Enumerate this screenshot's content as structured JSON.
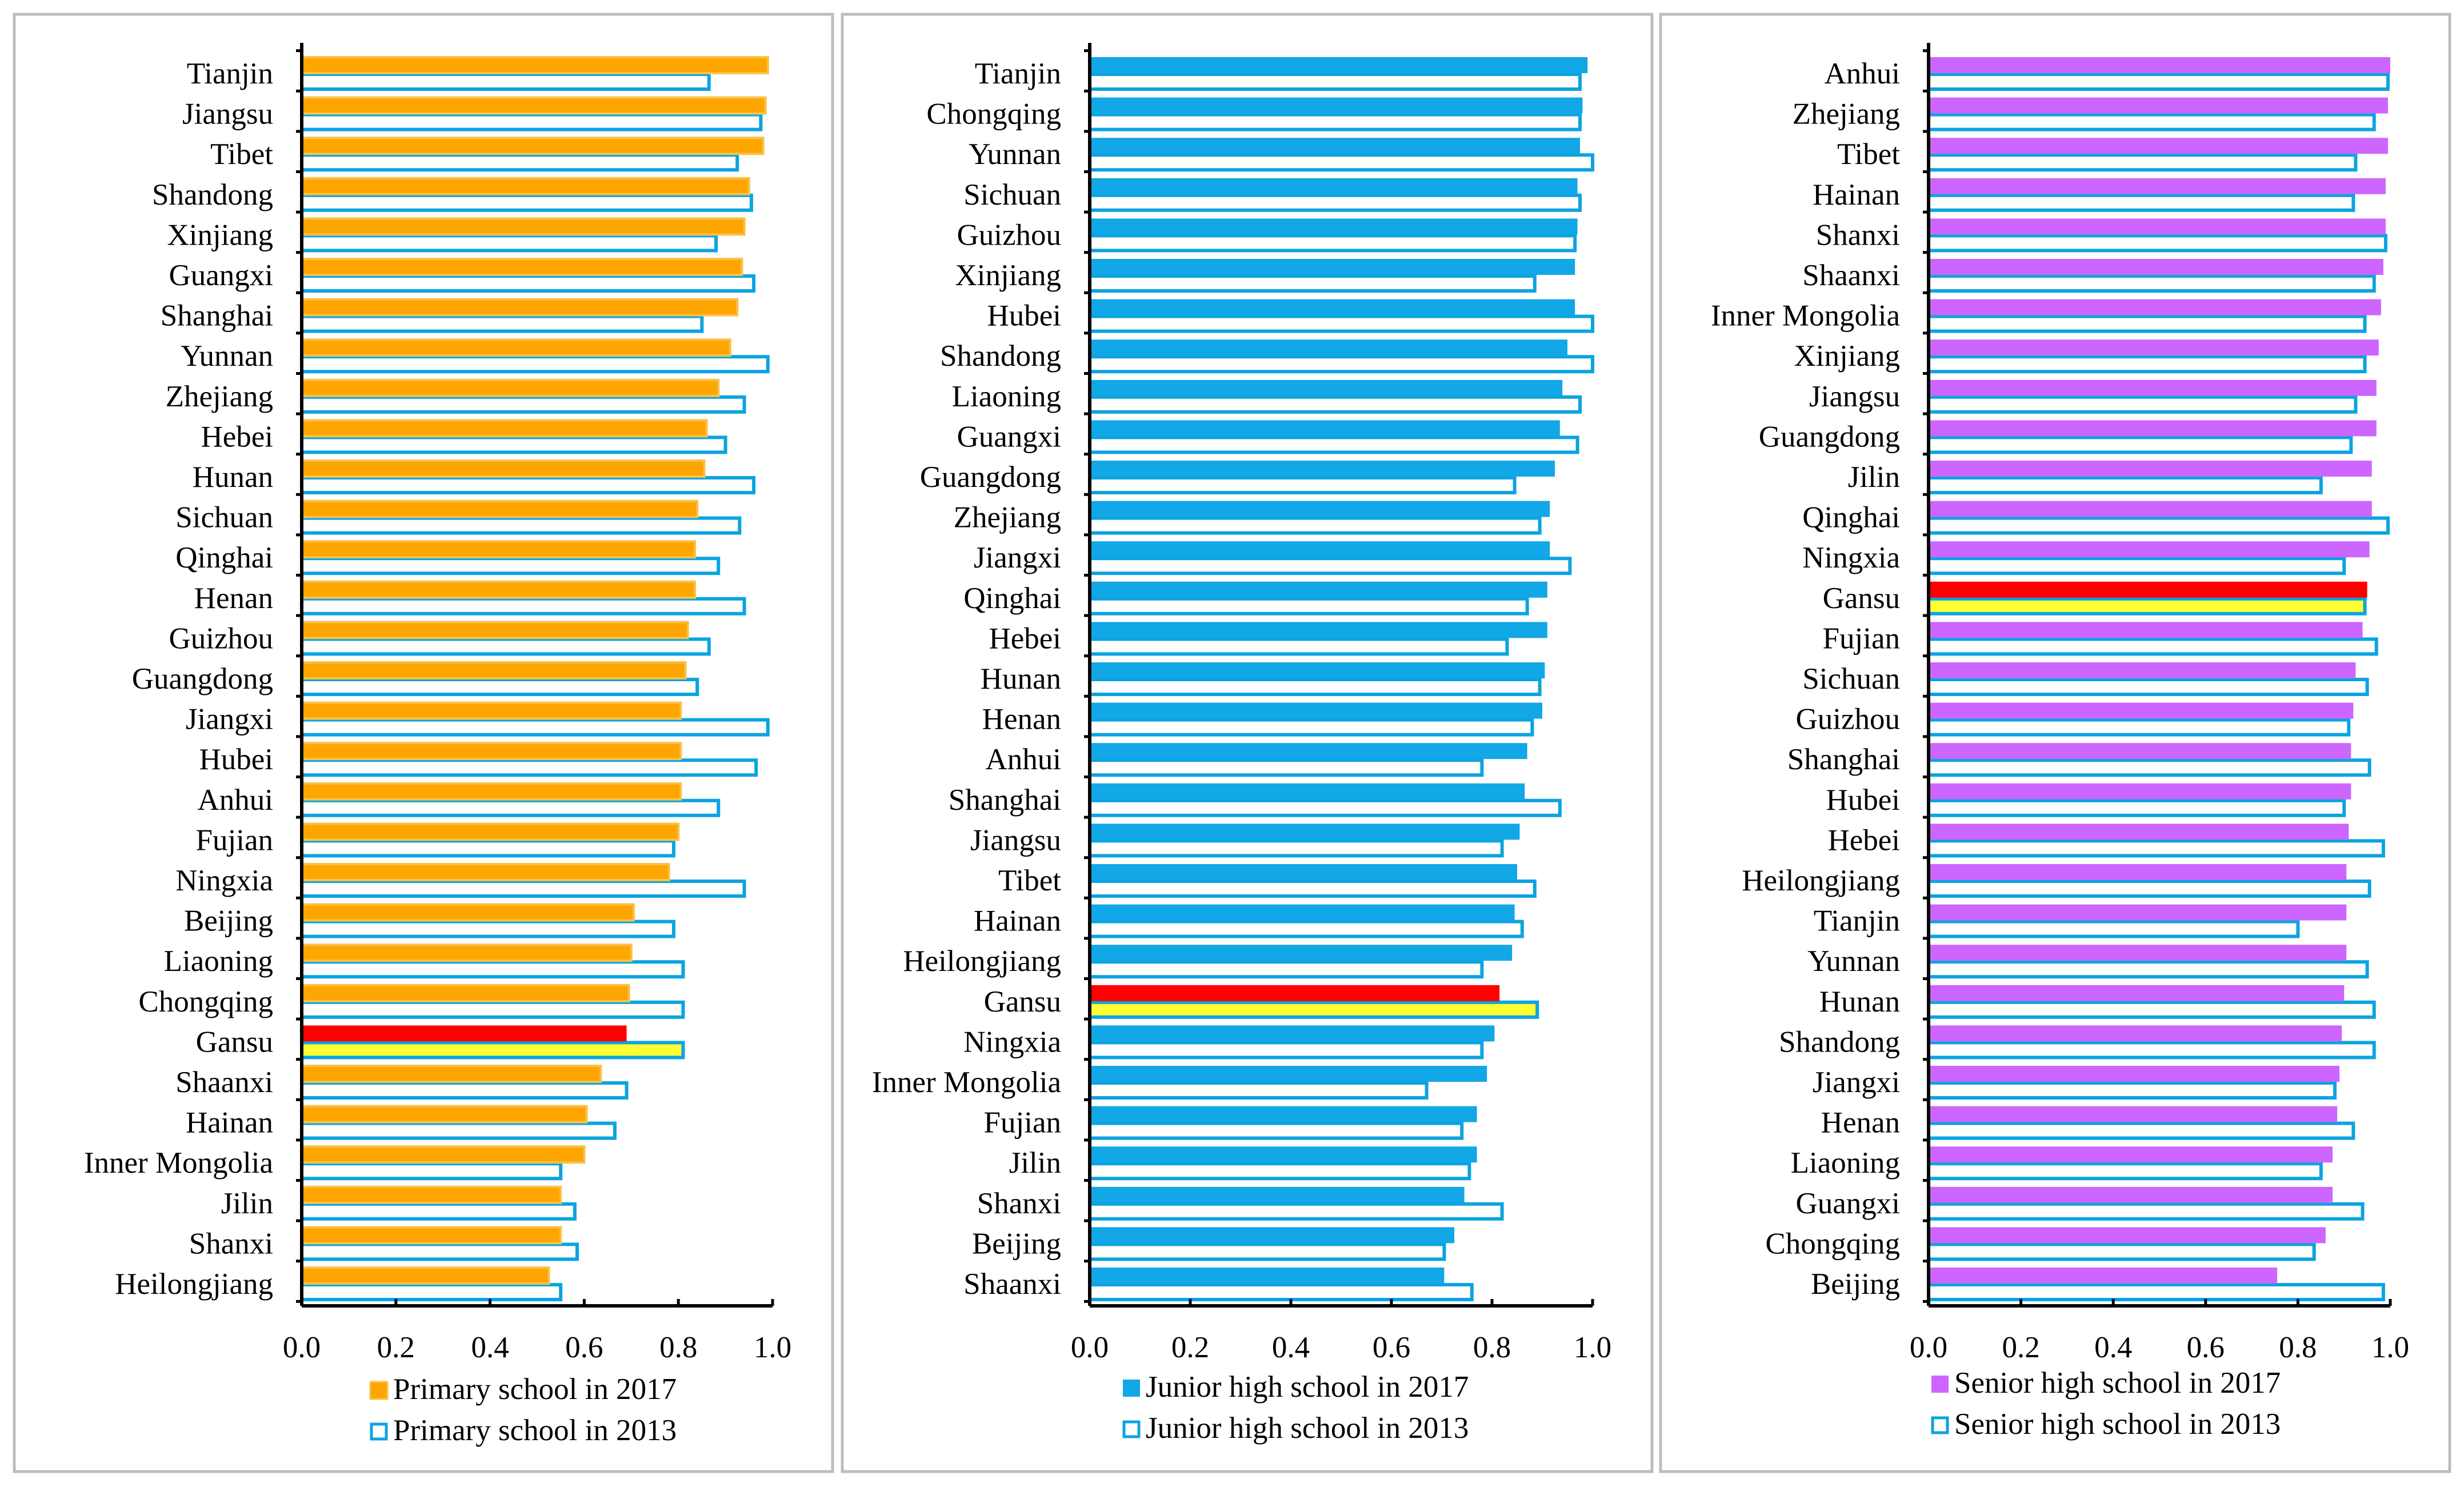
{
  "x_axis": {
    "ticks": [
      "0.0",
      "0.2",
      "0.4",
      "0.6",
      "0.8",
      "1.0"
    ],
    "xlim": [
      0,
      1
    ]
  },
  "chart_data": [
    {
      "type": "bar",
      "orientation": "horizontal",
      "panel": "primary",
      "categories": [
        "Tianjin",
        "Jiangsu",
        "Tibet",
        "Shandong",
        "Xinjiang",
        "Guangxi",
        "Shanghai",
        "Yunnan",
        "Zhejiang",
        "Hebei",
        "Hunan",
        "Sichuan",
        "Qinghai",
        "Henan",
        "Guizhou",
        "Guangdong",
        "Jiangxi",
        "Hubei",
        "Anhui",
        "Fujian",
        "Ningxia",
        "Beijing",
        "Liaoning",
        "Chongqing",
        "Gansu",
        "Shaanxi",
        "Hainan",
        "Inner Mongolia",
        "Jilin",
        "Shanxi",
        "Heilongjiang"
      ],
      "highlight_category": "Gansu",
      "series": [
        {
          "name": "Primary school in 2017",
          "style": "filled",
          "values": [
            0.99,
            0.985,
            0.98,
            0.95,
            0.94,
            0.935,
            0.925,
            0.91,
            0.885,
            0.86,
            0.855,
            0.84,
            0.835,
            0.835,
            0.82,
            0.815,
            0.805,
            0.805,
            0.805,
            0.8,
            0.78,
            0.705,
            0.7,
            0.695,
            0.69,
            0.635,
            0.605,
            0.6,
            0.55,
            0.55,
            0.525
          ]
        },
        {
          "name": "Primary school in 2013",
          "style": "outline",
          "values": [
            0.865,
            0.975,
            0.925,
            0.955,
            0.88,
            0.96,
            0.85,
            0.99,
            0.94,
            0.9,
            0.96,
            0.93,
            0.885,
            0.94,
            0.865,
            0.84,
            0.99,
            0.965,
            0.885,
            0.79,
            0.94,
            0.79,
            0.81,
            0.81,
            0.81,
            0.69,
            0.665,
            0.55,
            0.58,
            0.585,
            0.55
          ]
        }
      ],
      "colors": {
        "fill": "#FFA500",
        "fill_stroke": "#F7C24A",
        "outline": "#0BA4E0",
        "highlight_fill": "#FF0000",
        "highlight_outline_fill": "#FFFF33"
      }
    },
    {
      "type": "bar",
      "orientation": "horizontal",
      "panel": "junior",
      "categories": [
        "Tianjin",
        "Chongqing",
        "Yunnan",
        "Sichuan",
        "Guizhou",
        "Xinjiang",
        "Hubei",
        "Shandong",
        "Liaoning",
        "Guangxi",
        "Guangdong",
        "Zhejiang",
        "Jiangxi",
        "Qinghai",
        "Hebei",
        "Hunan",
        "Henan",
        "Anhui",
        "Shanghai",
        "Jiangsu",
        "Tibet",
        "Hainan",
        "Heilongjiang",
        "Gansu",
        "Ningxia",
        "Inner Mongolia",
        "Fujian",
        "Jilin",
        "Shanxi",
        "Beijing",
        "Shaanxi"
      ],
      "highlight_category": "Gansu",
      "series": [
        {
          "name": "Junior high school in 2017",
          "style": "filled",
          "values": [
            0.99,
            0.98,
            0.975,
            0.97,
            0.97,
            0.965,
            0.965,
            0.95,
            0.94,
            0.935,
            0.925,
            0.915,
            0.915,
            0.91,
            0.91,
            0.905,
            0.9,
            0.87,
            0.865,
            0.855,
            0.85,
            0.845,
            0.84,
            0.815,
            0.805,
            0.79,
            0.77,
            0.77,
            0.745,
            0.725,
            0.705
          ]
        },
        {
          "name": "Junior high school in 2013",
          "style": "outline",
          "values": [
            0.975,
            0.975,
            1.0,
            0.975,
            0.965,
            0.885,
            1.0,
            1.0,
            0.975,
            0.97,
            0.845,
            0.895,
            0.955,
            0.87,
            0.83,
            0.895,
            0.88,
            0.78,
            0.935,
            0.82,
            0.885,
            0.86,
            0.78,
            0.89,
            0.78,
            0.67,
            0.74,
            0.755,
            0.82,
            0.705,
            0.76
          ]
        }
      ],
      "colors": {
        "fill": "#12A7E6",
        "outline": "#0BA4E0",
        "highlight_fill": "#FF0000",
        "highlight_outline_fill": "#FFFF33"
      }
    },
    {
      "type": "bar",
      "orientation": "horizontal",
      "panel": "senior",
      "categories": [
        "Anhui",
        "Zhejiang",
        "Tibet",
        "Hainan",
        "Shanxi",
        "Shaanxi",
        "Inner Mongolia",
        "Xinjiang",
        "Jiangsu",
        "Guangdong",
        "Jilin",
        "Qinghai",
        "Ningxia",
        "Gansu",
        "Fujian",
        "Sichuan",
        "Guizhou",
        "Shanghai",
        "Hubei",
        "Hebei",
        "Heilongjiang",
        "Tianjin",
        "Yunnan",
        "Hunan",
        "Shandong",
        "Jiangxi",
        "Henan",
        "Liaoning",
        "Guangxi",
        "Chongqing",
        "Beijing"
      ],
      "highlight_category": "Gansu",
      "series": [
        {
          "name": "Senior high school in 2017",
          "style": "filled",
          "values": [
            1.0,
            0.995,
            0.995,
            0.99,
            0.99,
            0.985,
            0.98,
            0.975,
            0.97,
            0.97,
            0.96,
            0.96,
            0.955,
            0.95,
            0.94,
            0.925,
            0.92,
            0.915,
            0.915,
            0.91,
            0.905,
            0.905,
            0.905,
            0.9,
            0.895,
            0.89,
            0.885,
            0.875,
            0.875,
            0.86,
            0.755
          ]
        },
        {
          "name": "Senior high school in 2013",
          "style": "outline",
          "values": [
            0.995,
            0.965,
            0.925,
            0.92,
            0.99,
            0.965,
            0.945,
            0.945,
            0.925,
            0.915,
            0.85,
            0.995,
            0.9,
            0.945,
            0.97,
            0.95,
            0.91,
            0.955,
            0.9,
            0.985,
            0.955,
            0.8,
            0.95,
            0.965,
            0.965,
            0.88,
            0.92,
            0.85,
            0.94,
            0.835,
            0.985
          ]
        }
      ],
      "colors": {
        "fill": "#CC66FF",
        "outline": "#0BA4E0",
        "highlight_fill": "#FF0000",
        "highlight_outline_fill": "#FFFF33"
      }
    }
  ]
}
